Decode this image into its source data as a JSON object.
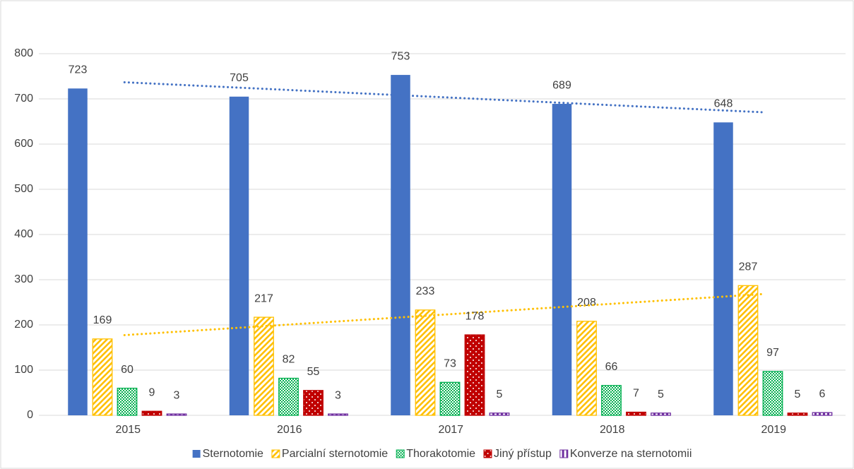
{
  "chart_data": {
    "type": "bar",
    "categories": [
      "2015",
      "2016",
      "2017",
      "2018",
      "2019"
    ],
    "series": [
      {
        "name": "Sternotomie",
        "color": "#4472c4",
        "pattern": "solid",
        "trendline": true,
        "values": [
          723,
          705,
          753,
          689,
          648
        ]
      },
      {
        "name": "Parcialní sternotomie",
        "color": "#ffc000",
        "pattern": "diagonal",
        "trendline": true,
        "values": [
          169,
          217,
          233,
          208,
          287
        ]
      },
      {
        "name": "Thorakotomie",
        "color": "#00b050",
        "pattern": "checker",
        "trendline": false,
        "values": [
          60,
          82,
          73,
          66,
          97
        ]
      },
      {
        "name": "Jiný přístup",
        "color": "#c00000",
        "pattern": "dots",
        "trendline": false,
        "values": [
          9,
          55,
          178,
          7,
          5
        ]
      },
      {
        "name": "Konverze na sternotomii",
        "color": "#7030a0",
        "pattern": "vertical",
        "trendline": false,
        "values": [
          3,
          3,
          5,
          5,
          6
        ]
      }
    ],
    "ylim": [
      0,
      800
    ],
    "yticks": [
      0,
      100,
      200,
      300,
      400,
      500,
      600,
      700,
      800
    ],
    "grid": true,
    "legend": "bottom",
    "data_labels": true
  }
}
